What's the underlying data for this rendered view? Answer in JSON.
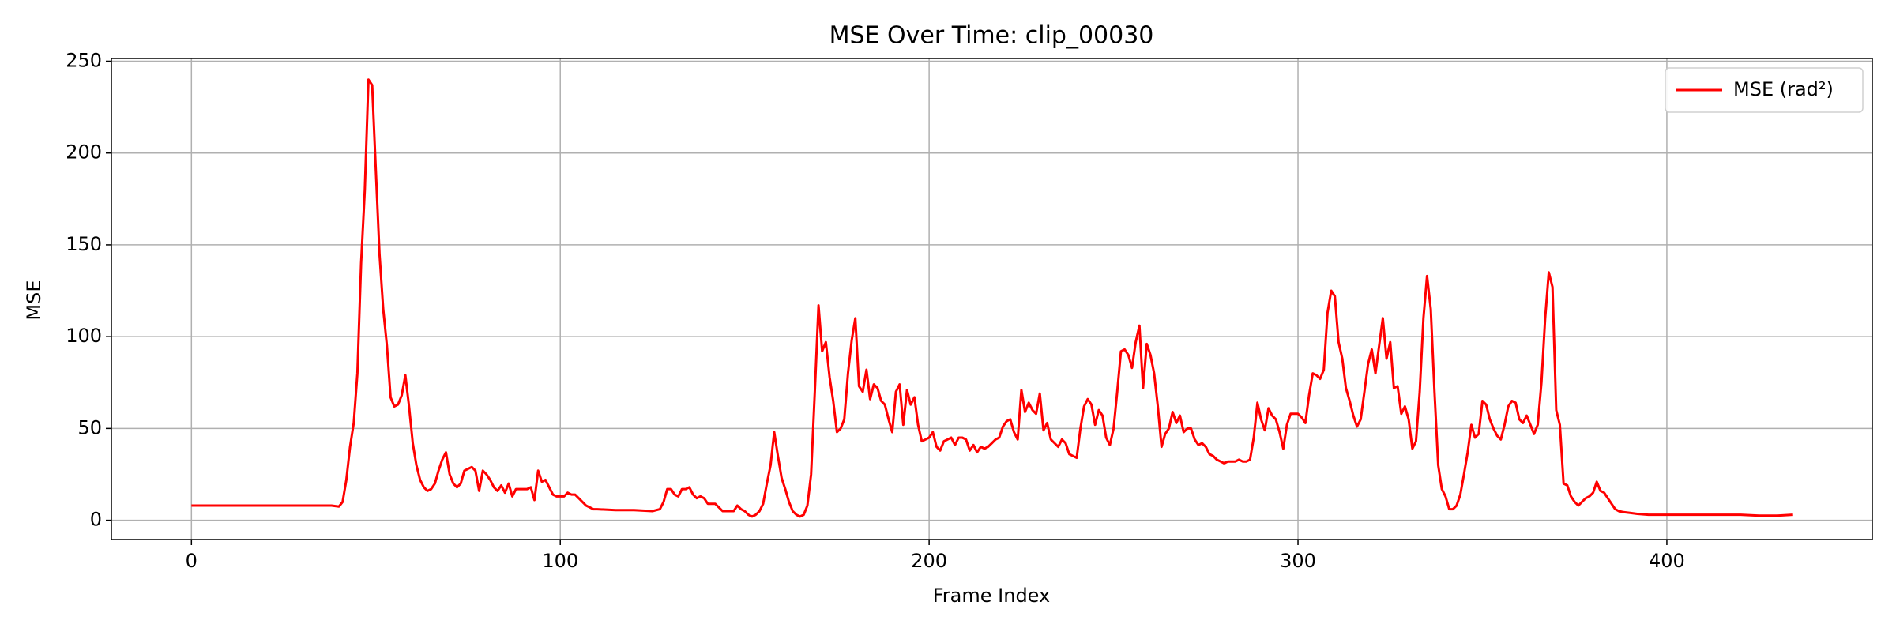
{
  "chart_data": {
    "type": "line",
    "title": "MSE Over Time: clip_00030",
    "x_label": "Frame Index",
    "y_label": "MSE",
    "xlim": [
      -21.7,
      455.7
    ],
    "ylim": [
      -10.5,
      251.5
    ],
    "xticks": [
      0,
      100,
      200,
      300,
      400
    ],
    "yticks": [
      0,
      50,
      100,
      150,
      200,
      250
    ],
    "grid": true,
    "legend": "upper right",
    "x": [
      0,
      10,
      20,
      30,
      38,
      40,
      41,
      42,
      43,
      44,
      45,
      46,
      47,
      48,
      49,
      50,
      51,
      52,
      53,
      54,
      55,
      56,
      57,
      58,
      59,
      60,
      61,
      62,
      63,
      64,
      65,
      66,
      67,
      68,
      69,
      70,
      71,
      72,
      73,
      74,
      75,
      76,
      77,
      78,
      79,
      80,
      81,
      82,
      83,
      84,
      85,
      86,
      87,
      88,
      89,
      90,
      91,
      92,
      93,
      94,
      95,
      96,
      97,
      98,
      99,
      100,
      101,
      102,
      103,
      104,
      105,
      106,
      107,
      108,
      109,
      110,
      115,
      120,
      125,
      127,
      128,
      129,
      130,
      131,
      132,
      133,
      134,
      135,
      136,
      137,
      138,
      139,
      140,
      141,
      142,
      143,
      144,
      145,
      146,
      147,
      148,
      149,
      150,
      151,
      152,
      153,
      154,
      155,
      156,
      157,
      158,
      159,
      160,
      161,
      162,
      163,
      164,
      165,
      166,
      167,
      168,
      169,
      170,
      171,
      172,
      173,
      174,
      175,
      176,
      177,
      178,
      179,
      180,
      181,
      182,
      183,
      184,
      185,
      186,
      187,
      188,
      189,
      190,
      191,
      192,
      193,
      194,
      195,
      196,
      197,
      198,
      199,
      200,
      201,
      202,
      203,
      204,
      205,
      206,
      207,
      208,
      209,
      210,
      211,
      212,
      213,
      214,
      215,
      216,
      217,
      218,
      219,
      220,
      221,
      222,
      223,
      224,
      225,
      226,
      227,
      228,
      229,
      230,
      231,
      232,
      233,
      234,
      235,
      236,
      237,
      238,
      239,
      240,
      241,
      242,
      243,
      244,
      245,
      246,
      247,
      248,
      249,
      250,
      251,
      252,
      253,
      254,
      255,
      256,
      257,
      258,
      259,
      260,
      261,
      262,
      263,
      264,
      265,
      266,
      267,
      268,
      269,
      270,
      271,
      272,
      273,
      274,
      275,
      276,
      277,
      278,
      279,
      280,
      281,
      282,
      283,
      284,
      285,
      286,
      287,
      288,
      289,
      290,
      291,
      292,
      293,
      294,
      295,
      296,
      297,
      298,
      299,
      300,
      301,
      302,
      303,
      304,
      305,
      306,
      307,
      308,
      309,
      310,
      311,
      312,
      313,
      314,
      315,
      316,
      317,
      318,
      319,
      320,
      321,
      322,
      323,
      324,
      325,
      326,
      327,
      328,
      329,
      330,
      331,
      332,
      333,
      334,
      335,
      336,
      337,
      338,
      339,
      340,
      341,
      342,
      343,
      344,
      345,
      346,
      347,
      348,
      349,
      350,
      351,
      352,
      353,
      354,
      355,
      356,
      357,
      358,
      359,
      360,
      361,
      362,
      363,
      364,
      365,
      366,
      367,
      368,
      369,
      370,
      371,
      372,
      373,
      374,
      375,
      376,
      377,
      378,
      379,
      380,
      381,
      382,
      383,
      384,
      385,
      386,
      387,
      388,
      390,
      392,
      395,
      400,
      410,
      420,
      425,
      430,
      434
    ],
    "series": [
      {
        "name": "MSE (rad²)",
        "color": "#ff0000",
        "values": [
          8,
          8,
          8,
          8,
          8,
          7.5,
          10,
          22,
          40,
          53,
          80,
          140,
          180,
          240,
          237,
          190,
          145,
          115,
          95,
          67,
          62,
          63,
          68,
          79,
          62,
          42,
          30,
          22,
          18,
          16,
          17,
          20,
          27,
          33,
          37,
          25,
          20,
          18,
          20,
          27,
          28,
          29,
          27,
          16,
          27,
          25,
          22,
          18,
          16,
          19,
          15,
          20,
          13,
          17,
          17,
          17,
          17,
          18,
          11,
          27,
          21,
          22,
          18,
          14,
          13,
          13,
          13,
          15,
          14,
          14,
          12,
          10,
          8,
          7,
          6,
          6,
          5.5,
          5.5,
          5,
          6,
          10,
          17,
          17,
          14,
          13,
          17,
          17,
          18,
          14,
          12,
          13,
          12,
          9,
          9,
          9,
          7,
          5,
          5,
          5,
          5,
          8,
          6,
          5,
          3,
          2,
          3,
          5,
          9,
          20,
          30,
          48,
          35,
          23,
          17,
          10,
          5,
          3,
          2,
          3,
          8,
          25,
          70,
          117,
          92,
          97,
          78,
          65,
          48,
          50,
          55,
          80,
          98,
          110,
          73,
          70,
          82,
          66,
          74,
          72,
          65,
          63,
          55,
          48,
          70,
          74,
          52,
          71,
          63,
          67,
          52,
          43,
          44,
          45,
          48,
          40,
          38,
          43,
          44,
          45,
          41,
          45,
          45,
          44,
          38,
          41,
          37,
          40,
          39,
          40,
          42,
          44,
          45,
          51,
          54,
          55,
          48,
          44,
          71,
          59,
          64,
          60,
          58,
          69,
          49,
          53,
          44,
          42,
          40,
          44,
          42,
          36,
          35,
          34,
          50,
          62,
          66,
          63,
          52,
          60,
          57,
          45,
          41,
          50,
          70,
          92,
          93,
          90,
          83,
          97,
          106,
          72,
          96,
          90,
          80,
          62,
          40,
          47,
          50,
          59,
          53,
          57,
          48,
          50,
          50,
          44,
          41,
          42,
          40,
          36,
          35,
          33,
          32,
          31,
          32,
          32,
          32,
          33,
          32,
          32,
          33,
          45,
          64,
          55,
          49,
          61,
          57,
          55,
          48,
          39,
          52,
          58,
          58,
          58,
          56,
          53,
          68,
          80,
          79,
          77,
          82,
          113,
          125,
          122,
          97,
          88,
          72,
          65,
          57,
          51,
          55,
          70,
          85,
          93,
          80,
          95,
          110,
          88,
          97,
          72,
          73,
          58,
          62,
          55,
          39,
          43,
          70,
          110,
          133,
          115,
          70,
          30,
          17,
          13,
          6,
          6,
          8,
          14,
          25,
          37,
          52,
          45,
          47,
          65,
          63,
          55,
          50,
          46,
          44,
          52,
          62,
          65,
          64,
          55,
          53,
          57,
          52,
          47,
          52,
          75,
          110,
          135,
          127,
          60,
          52,
          20,
          19,
          13,
          10,
          8,
          10,
          12,
          13,
          15,
          21,
          16,
          15,
          12,
          9,
          6,
          5,
          4.5,
          4,
          3.5,
          3,
          3,
          3,
          3,
          2.5,
          2.5,
          3
        ]
      }
    ]
  }
}
